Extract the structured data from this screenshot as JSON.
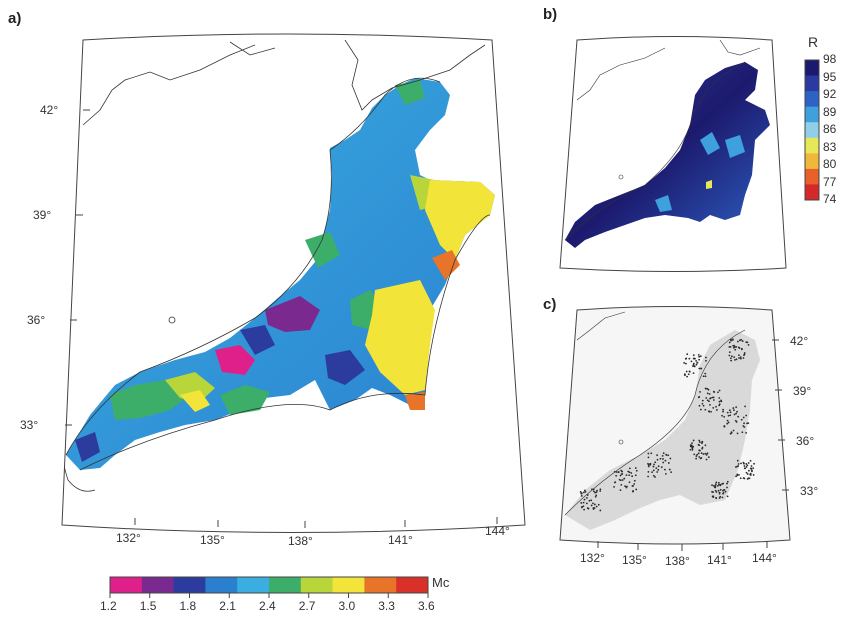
{
  "panels": {
    "a": {
      "label": "a)",
      "lat_ticks": [
        "42°",
        "39°",
        "36°",
        "33°"
      ],
      "lon_ticks": [
        "132°",
        "135°",
        "138°",
        "141°",
        "144°"
      ],
      "colorbar": {
        "title": "Mc",
        "ticks": [
          "1.2",
          "1.5",
          "1.8",
          "2.1",
          "2.4",
          "2.7",
          "3.0",
          "3.3",
          "3.6"
        ],
        "colors": [
          "#e0208a",
          "#7a2a8e",
          "#2c3b9e",
          "#2a7fcf",
          "#3aaee0",
          "#3cae6a",
          "#b8d63a",
          "#f3e43a",
          "#e8742a",
          "#d9302a"
        ]
      }
    },
    "b": {
      "label": "b)",
      "colorbar": {
        "title": "R",
        "ticks": [
          "98",
          "95",
          "92",
          "89",
          "86",
          "83",
          "80",
          "77",
          "74"
        ],
        "colors": [
          "#1c1a6e",
          "#2a3aa0",
          "#2e63c6",
          "#3ea0dc",
          "#8fd0e8",
          "#e6e85a",
          "#f0b83a",
          "#e8602a",
          "#d4282a"
        ]
      }
    },
    "c": {
      "label": "c)",
      "lat_ticks": [
        "42°",
        "39°",
        "36°",
        "33°"
      ],
      "lon_ticks": [
        "132°",
        "135°",
        "138°",
        "141°",
        "144°"
      ]
    }
  }
}
